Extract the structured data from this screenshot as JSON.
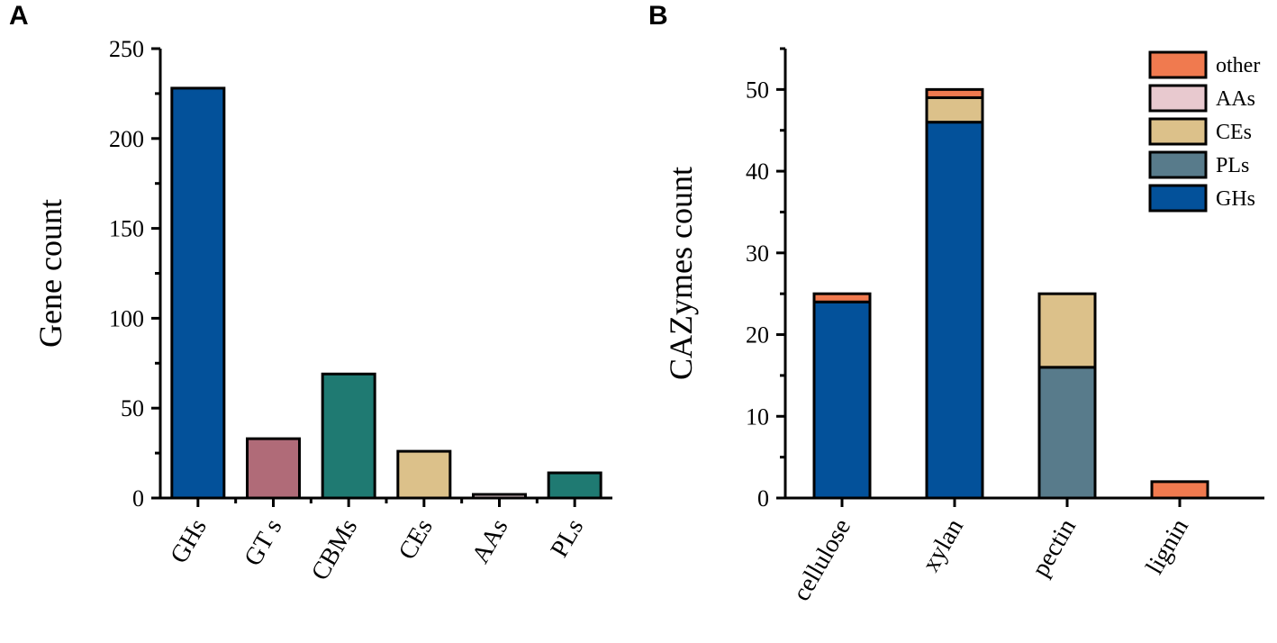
{
  "panels": {
    "a_label": "A",
    "b_label": "B"
  },
  "chart_data": [
    {
      "type": "bar",
      "title": "",
      "xlabel": "",
      "ylabel": "Gene count",
      "ylim": [
        0,
        250
      ],
      "yticks": [
        0,
        50,
        100,
        150,
        200,
        250
      ],
      "categories": [
        "GHs",
        "GT s",
        "CBMs",
        "CEs",
        "AAs",
        "PLs"
      ],
      "values": [
        228,
        33,
        69,
        26,
        2,
        14
      ],
      "colors": [
        "#03519a",
        "#b06b78",
        "#1f7a72",
        "#dcc18a",
        "#f0d8dc",
        "#1f7a72"
      ]
    },
    {
      "type": "bar",
      "stacked": true,
      "title": "",
      "xlabel": "",
      "ylabel": "CAZymes count",
      "ylim": [
        0,
        55
      ],
      "yticks": [
        0,
        10,
        20,
        30,
        40,
        50
      ],
      "categories": [
        "cellulose",
        "xylan",
        "pectin",
        "lignin"
      ],
      "series": [
        {
          "name": "GHs",
          "color": "#03519a",
          "values": [
            24,
            46,
            0,
            0
          ]
        },
        {
          "name": "PLs",
          "color": "#587b8b",
          "values": [
            0,
            0,
            16,
            0
          ]
        },
        {
          "name": "CEs",
          "color": "#dcc18a",
          "values": [
            0,
            3,
            9,
            0
          ]
        },
        {
          "name": "AAs",
          "color": "#e8c9cf",
          "values": [
            0,
            0,
            0,
            0
          ]
        },
        {
          "name": "other",
          "color": "#f07a4f",
          "values": [
            1,
            1,
            0,
            2
          ]
        }
      ],
      "legend": [
        "other",
        "AAs",
        "CEs",
        "PLs",
        "GHs"
      ],
      "legend_position": "top-right"
    }
  ]
}
